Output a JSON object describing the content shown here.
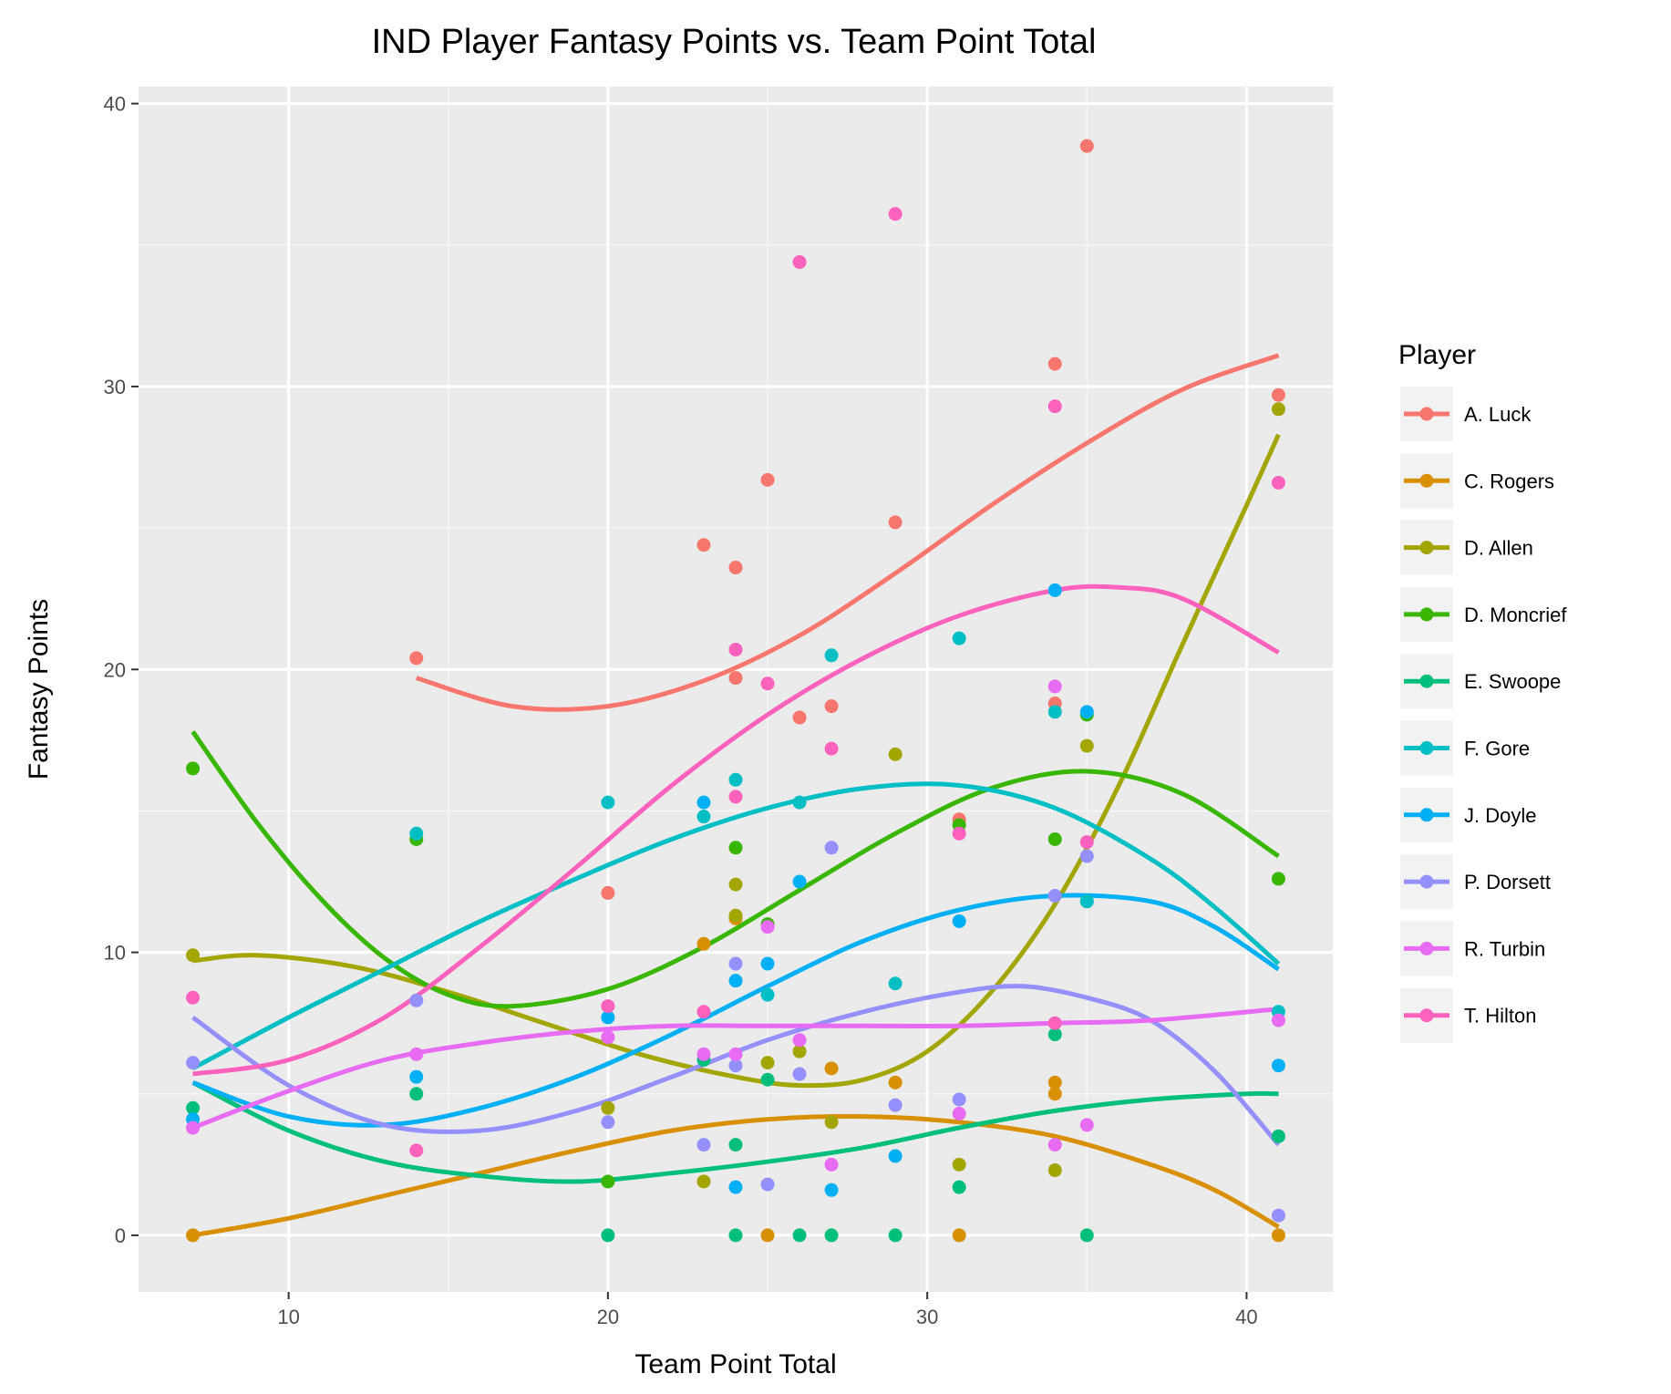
{
  "chart_data": {
    "type": "scatter",
    "title": "IND Player Fantasy Points vs. Team Point Total",
    "xlabel": "Team Point Total",
    "ylabel": "Fantasy Points",
    "xlim": [
      5.3,
      42.7
    ],
    "ylim": [
      -2,
      40.6
    ],
    "xticks": [
      10,
      20,
      30,
      40
    ],
    "yticks": [
      0,
      10,
      20,
      30,
      40
    ],
    "grid": true,
    "legend": {
      "title": "Player",
      "position": "right"
    },
    "panel_color": "#ebebeb",
    "series": [
      {
        "name": "A. Luck",
        "color": "#F8766D",
        "points": [
          [
            14,
            20.4
          ],
          [
            20,
            12.1
          ],
          [
            23,
            24.4
          ],
          [
            24,
            23.6
          ],
          [
            24,
            19.7
          ],
          [
            25,
            26.7
          ],
          [
            26,
            18.3
          ],
          [
            27,
            18.7
          ],
          [
            29,
            25.2
          ],
          [
            31,
            14.7
          ],
          [
            34,
            30.8
          ],
          [
            34,
            18.8
          ],
          [
            35,
            38.5
          ],
          [
            41,
            29.7
          ]
        ],
        "smooth": [
          [
            14,
            19.7
          ],
          [
            17,
            18.7
          ],
          [
            20,
            18.7
          ],
          [
            23,
            19.6
          ],
          [
            26,
            21.2
          ],
          [
            29,
            23.4
          ],
          [
            32,
            25.8
          ],
          [
            35,
            28.0
          ],
          [
            38,
            29.9
          ],
          [
            41,
            31.1
          ]
        ]
      },
      {
        "name": "C. Rogers",
        "color": "#D89000",
        "points": [
          [
            7,
            0
          ],
          [
            23,
            10.3
          ],
          [
            24,
            11.2
          ],
          [
            25,
            0
          ],
          [
            27,
            5.9
          ],
          [
            29,
            5.4
          ],
          [
            31,
            0
          ],
          [
            34,
            5.4
          ],
          [
            34,
            5.0
          ],
          [
            41,
            0
          ]
        ],
        "smooth": [
          [
            7,
            0
          ],
          [
            10,
            0.6
          ],
          [
            13,
            1.4
          ],
          [
            16,
            2.2
          ],
          [
            19,
            3.0
          ],
          [
            22,
            3.7
          ],
          [
            25,
            4.1
          ],
          [
            28,
            4.2
          ],
          [
            31,
            4.0
          ],
          [
            34,
            3.5
          ],
          [
            37,
            2.5
          ],
          [
            39,
            1.6
          ],
          [
            41,
            0.3
          ]
        ]
      },
      {
        "name": "D. Allen",
        "color": "#A3A500",
        "points": [
          [
            7,
            9.9
          ],
          [
            20,
            4.5
          ],
          [
            23,
            1.9
          ],
          [
            24,
            12.4
          ],
          [
            24,
            11.3
          ],
          [
            25,
            6.1
          ],
          [
            26,
            6.5
          ],
          [
            27,
            4.0
          ],
          [
            29,
            17.0
          ],
          [
            31,
            2.5
          ],
          [
            34,
            2.3
          ],
          [
            35,
            17.3
          ],
          [
            41,
            29.2
          ]
        ],
        "smooth": [
          [
            7,
            9.7
          ],
          [
            9,
            9.9
          ],
          [
            12,
            9.5
          ],
          [
            15,
            8.6
          ],
          [
            18,
            7.5
          ],
          [
            21,
            6.4
          ],
          [
            24,
            5.6
          ],
          [
            26,
            5.3
          ],
          [
            28,
            5.5
          ],
          [
            30,
            6.5
          ],
          [
            32,
            8.6
          ],
          [
            34,
            11.7
          ],
          [
            36,
            15.9
          ],
          [
            38,
            20.9
          ],
          [
            40,
            25.8
          ],
          [
            41,
            28.3
          ]
        ]
      },
      {
        "name": "D. Moncrief",
        "color": "#39B600",
        "points": [
          [
            7,
            16.5
          ],
          [
            14,
            14.0
          ],
          [
            20,
            1.9
          ],
          [
            24,
            13.7
          ],
          [
            25,
            11.0
          ],
          [
            31,
            14.5
          ],
          [
            34,
            14.0
          ],
          [
            35,
            18.4
          ],
          [
            41,
            12.6
          ]
        ],
        "smooth": [
          [
            7,
            17.8
          ],
          [
            9,
            14.6
          ],
          [
            11,
            11.9
          ],
          [
            13,
            9.8
          ],
          [
            15,
            8.5
          ],
          [
            17,
            8.1
          ],
          [
            20,
            8.7
          ],
          [
            23,
            10.2
          ],
          [
            26,
            12.2
          ],
          [
            29,
            14.2
          ],
          [
            32,
            15.8
          ],
          [
            35,
            16.4
          ],
          [
            38,
            15.6
          ],
          [
            41,
            13.4
          ]
        ]
      },
      {
        "name": "E. Swoope",
        "color": "#00BF7D",
        "points": [
          [
            7,
            4.5
          ],
          [
            14,
            5.0
          ],
          [
            20,
            0
          ],
          [
            23,
            6.2
          ],
          [
            24,
            3.2
          ],
          [
            24,
            0
          ],
          [
            25,
            5.5
          ],
          [
            26,
            0
          ],
          [
            27,
            0
          ],
          [
            29,
            0
          ],
          [
            31,
            1.7
          ],
          [
            34,
            7.1
          ],
          [
            35,
            0
          ],
          [
            35,
            11.8
          ],
          [
            41,
            3.5
          ]
        ],
        "smooth": [
          [
            7,
            5.4
          ],
          [
            10,
            3.7
          ],
          [
            13,
            2.6
          ],
          [
            16,
            2.1
          ],
          [
            19,
            1.9
          ],
          [
            22,
            2.2
          ],
          [
            25,
            2.6
          ],
          [
            28,
            3.1
          ],
          [
            31,
            3.8
          ],
          [
            34,
            4.4
          ],
          [
            37,
            4.8
          ],
          [
            40,
            5.0
          ],
          [
            41,
            5.0
          ]
        ]
      },
      {
        "name": "F. Gore",
        "color": "#00BFC4",
        "points": [
          [
            14,
            14.2
          ],
          [
            20,
            15.3
          ],
          [
            23,
            14.8
          ],
          [
            24,
            16.1
          ],
          [
            25,
            8.5
          ],
          [
            26,
            15.3
          ],
          [
            27,
            20.5
          ],
          [
            29,
            8.9
          ],
          [
            31,
            21.1
          ],
          [
            34,
            18.5
          ],
          [
            35,
            11.8
          ],
          [
            41,
            7.9
          ]
        ],
        "smooth": [
          [
            7,
            5.9
          ],
          [
            10,
            7.7
          ],
          [
            13,
            9.4
          ],
          [
            16,
            11.1
          ],
          [
            19,
            12.6
          ],
          [
            22,
            14.0
          ],
          [
            25,
            15.1
          ],
          [
            28,
            15.8
          ],
          [
            31,
            15.9
          ],
          [
            34,
            15.1
          ],
          [
            37,
            13.3
          ],
          [
            39,
            11.6
          ],
          [
            41,
            9.6
          ]
        ]
      },
      {
        "name": "J. Doyle",
        "color": "#00B0F6",
        "points": [
          [
            7,
            4.1
          ],
          [
            14,
            5.6
          ],
          [
            20,
            7.7
          ],
          [
            23,
            15.3
          ],
          [
            24,
            9.0
          ],
          [
            24,
            1.7
          ],
          [
            25,
            9.6
          ],
          [
            26,
            12.5
          ],
          [
            27,
            1.6
          ],
          [
            29,
            2.8
          ],
          [
            31,
            11.1
          ],
          [
            34,
            22.8
          ],
          [
            35,
            18.5
          ],
          [
            41,
            6.0
          ]
        ],
        "smooth": [
          [
            7,
            5.4
          ],
          [
            10,
            4.2
          ],
          [
            13,
            3.9
          ],
          [
            16,
            4.5
          ],
          [
            19,
            5.6
          ],
          [
            22,
            7.1
          ],
          [
            25,
            8.8
          ],
          [
            28,
            10.4
          ],
          [
            31,
            11.5
          ],
          [
            34,
            12.0
          ],
          [
            37,
            11.8
          ],
          [
            39,
            10.9
          ],
          [
            41,
            9.4
          ]
        ]
      },
      {
        "name": "P. Dorsett",
        "color": "#9590FF",
        "points": [
          [
            7,
            6.1
          ],
          [
            14,
            8.3
          ],
          [
            20,
            4.0
          ],
          [
            23,
            3.2
          ],
          [
            24,
            9.6
          ],
          [
            24,
            6.0
          ],
          [
            25,
            1.8
          ],
          [
            26,
            5.7
          ],
          [
            27,
            13.7
          ],
          [
            29,
            4.6
          ],
          [
            31,
            4.8
          ],
          [
            34,
            12.0
          ],
          [
            35,
            13.4
          ],
          [
            41,
            0.7
          ]
        ],
        "smooth": [
          [
            7,
            7.7
          ],
          [
            10,
            5.3
          ],
          [
            13,
            3.9
          ],
          [
            16,
            3.7
          ],
          [
            19,
            4.4
          ],
          [
            22,
            5.6
          ],
          [
            25,
            6.9
          ],
          [
            28,
            7.9
          ],
          [
            31,
            8.6
          ],
          [
            33,
            8.8
          ],
          [
            35,
            8.4
          ],
          [
            37,
            7.6
          ],
          [
            39,
            5.8
          ],
          [
            41,
            3.2
          ]
        ]
      },
      {
        "name": "R. Turbin",
        "color": "#E76BF3",
        "points": [
          [
            7,
            3.8
          ],
          [
            14,
            6.4
          ],
          [
            20,
            7.0
          ],
          [
            23,
            6.4
          ],
          [
            24,
            6.4
          ],
          [
            25,
            10.9
          ],
          [
            26,
            6.9
          ],
          [
            27,
            2.5
          ],
          [
            31,
            4.3
          ],
          [
            34,
            19.4
          ],
          [
            34,
            3.2
          ],
          [
            35,
            3.9
          ],
          [
            41,
            7.6
          ]
        ],
        "smooth": [
          [
            7,
            3.8
          ],
          [
            10,
            5.1
          ],
          [
            13,
            6.2
          ],
          [
            16,
            6.8
          ],
          [
            19,
            7.2
          ],
          [
            22,
            7.4
          ],
          [
            25,
            7.4
          ],
          [
            28,
            7.4
          ],
          [
            31,
            7.4
          ],
          [
            34,
            7.5
          ],
          [
            37,
            7.6
          ],
          [
            41,
            8.0
          ]
        ]
      },
      {
        "name": "T. Hilton",
        "color": "#FF62BC",
        "points": [
          [
            7,
            8.4
          ],
          [
            14,
            3.0
          ],
          [
            20,
            8.1
          ],
          [
            23,
            7.9
          ],
          [
            24,
            20.7
          ],
          [
            24,
            15.5
          ],
          [
            25,
            19.5
          ],
          [
            26,
            34.4
          ],
          [
            27,
            17.2
          ],
          [
            29,
            36.1
          ],
          [
            31,
            14.2
          ],
          [
            34,
            29.3
          ],
          [
            34,
            7.5
          ],
          [
            35,
            13.9
          ],
          [
            41,
            26.6
          ]
        ],
        "smooth": [
          [
            7,
            5.7
          ],
          [
            10,
            6.2
          ],
          [
            13,
            7.7
          ],
          [
            16,
            10.2
          ],
          [
            19,
            13.0
          ],
          [
            22,
            15.9
          ],
          [
            25,
            18.4
          ],
          [
            28,
            20.4
          ],
          [
            31,
            21.9
          ],
          [
            34,
            22.8
          ],
          [
            36,
            22.9
          ],
          [
            38,
            22.5
          ],
          [
            41,
            20.6
          ]
        ]
      }
    ]
  }
}
